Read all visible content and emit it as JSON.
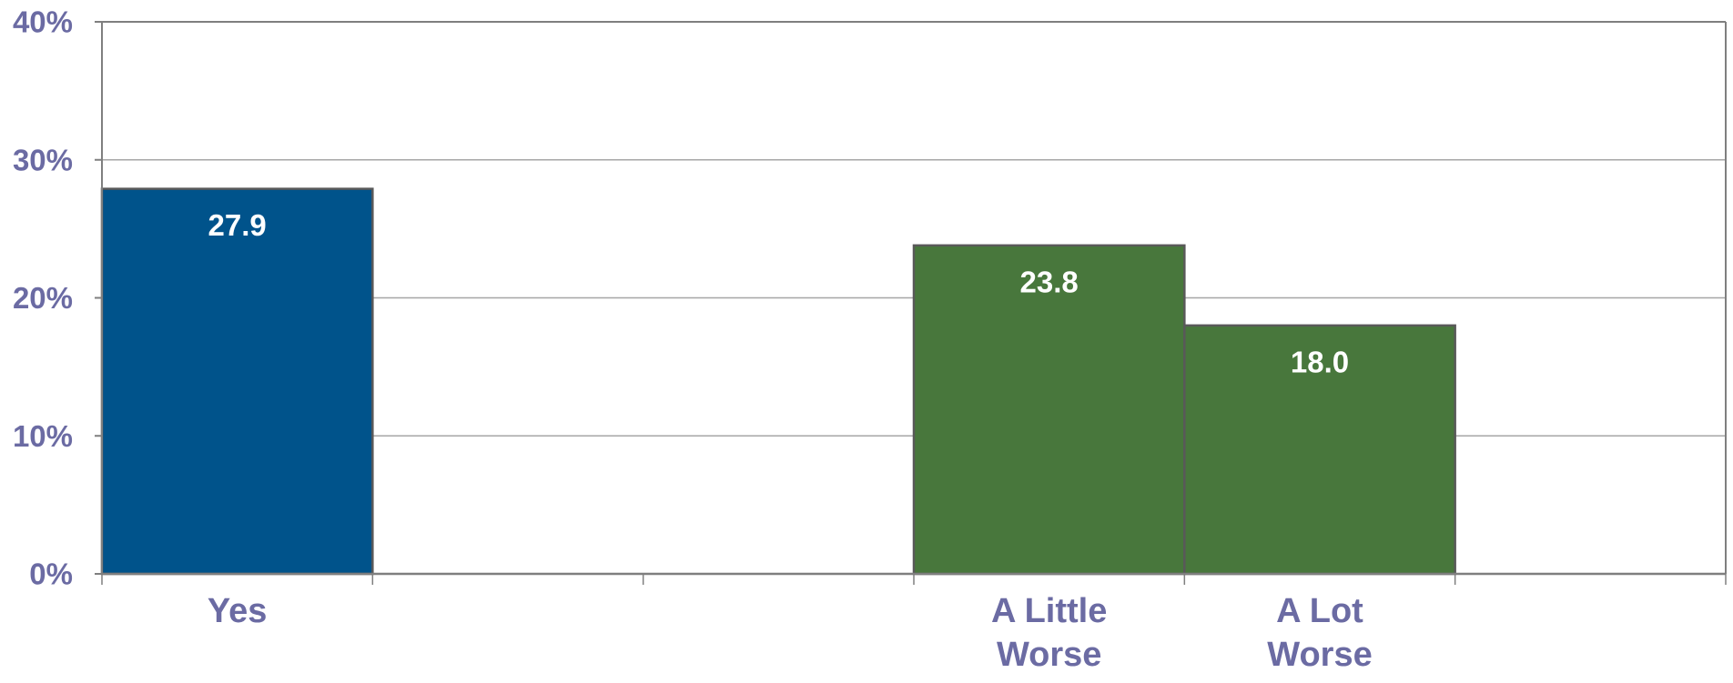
{
  "chart_data": {
    "type": "bar",
    "categories": [
      [
        "Yes"
      ],
      [],
      [],
      [
        "A Little",
        "Worse"
      ],
      [
        "A Lot",
        "Worse"
      ],
      []
    ],
    "values": [
      27.9,
      null,
      null,
      23.8,
      18.0,
      null
    ],
    "data_labels": [
      "27.9",
      "",
      "",
      "23.8",
      "18.0",
      ""
    ],
    "bar_colors": [
      "#00538b",
      null,
      null,
      "#48773c",
      "#48773c",
      null
    ],
    "ylim": [
      0,
      40
    ],
    "yticks": [
      {
        "value": 0,
        "label": "0%"
      },
      {
        "value": 10,
        "label": "10%"
      },
      {
        "value": 20,
        "label": "20%"
      },
      {
        "value": 30,
        "label": "30%"
      },
      {
        "value": 40,
        "label": "40%"
      }
    ],
    "grid": true,
    "title": "",
    "xlabel": "",
    "ylabel": ""
  },
  "colors": {
    "axis_text": "#6b6ba3",
    "gridline": "#a6a6a6",
    "axis": "#7f7f7f",
    "bar_border": "#595959",
    "data_label": "#ffffff"
  }
}
